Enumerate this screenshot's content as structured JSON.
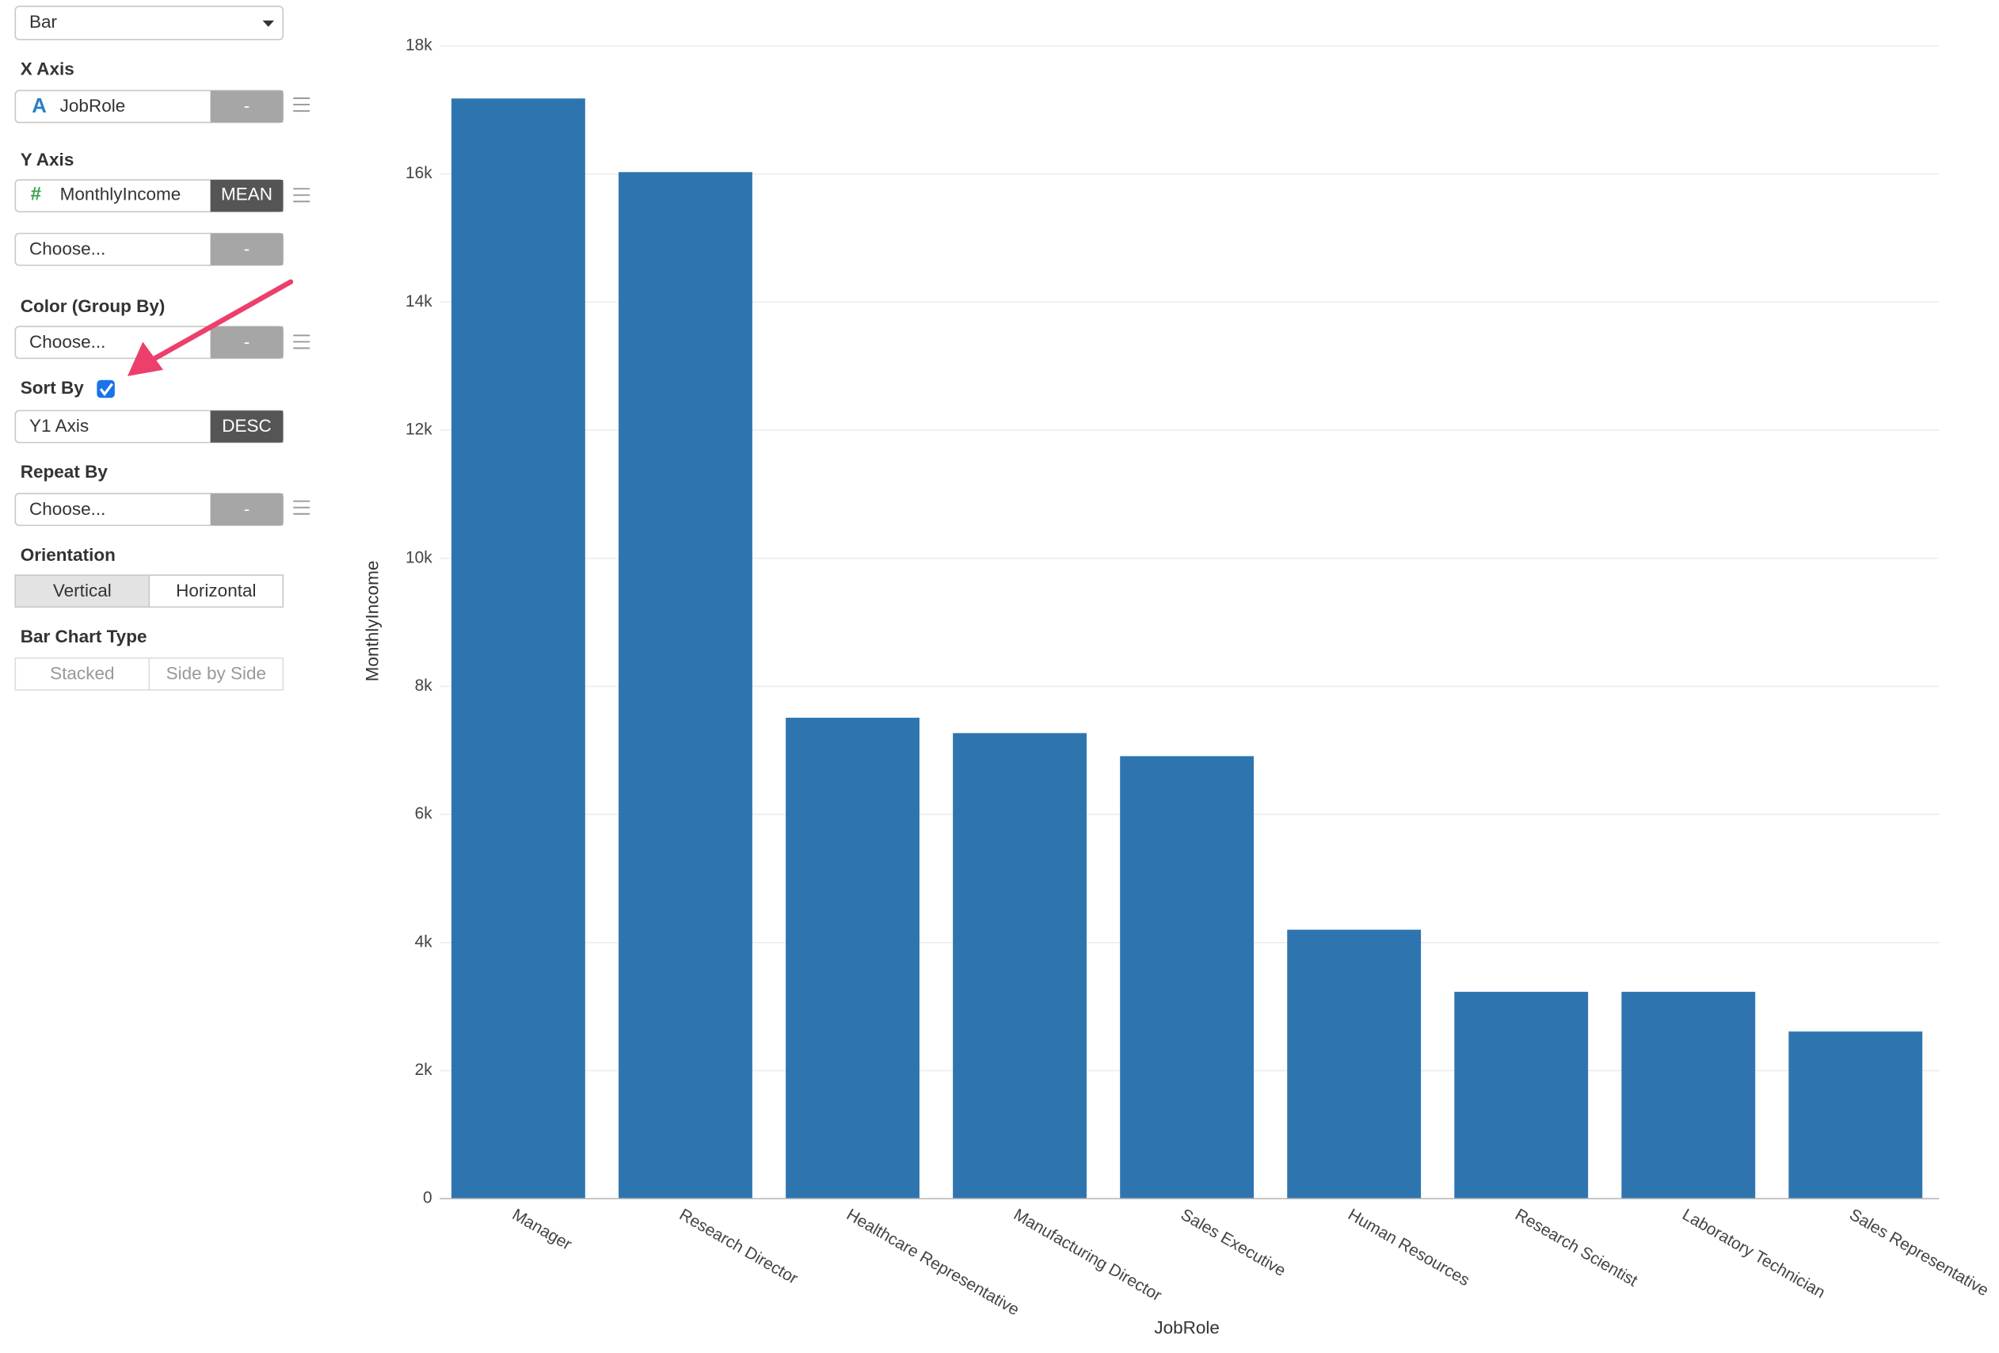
{
  "sidebar": {
    "chart_type": "Bar",
    "x_axis": {
      "label": "X Axis",
      "icon": "A",
      "field": "JobRole",
      "agg": "-"
    },
    "y_axis": {
      "label": "Y Axis",
      "icon": "#",
      "field": "MonthlyIncome",
      "agg": "MEAN"
    },
    "y_axis_extra": {
      "field": "Choose...",
      "agg": "-"
    },
    "color": {
      "label": "Color (Group By)",
      "field": "Choose...",
      "agg": "-"
    },
    "sort": {
      "label": "Sort By",
      "field": "Y1 Axis",
      "order": "DESC"
    },
    "repeat": {
      "label": "Repeat By",
      "field": "Choose...",
      "agg": "-"
    },
    "orientation": {
      "label": "Orientation",
      "options": [
        "Vertical",
        "Horizontal"
      ]
    },
    "bar_type": {
      "label": "Bar Chart Type",
      "options": [
        "Stacked",
        "Side by Side"
      ]
    }
  },
  "chart_data": {
    "type": "bar",
    "x_label": "JobRole",
    "y_label": "MonthlyIncome",
    "categories": [
      "Manager",
      "Research Director",
      "Healthcare Representative",
      "Manufacturing Director",
      "Sales Executive",
      "Human Resources",
      "Research Scientist",
      "Laboratory Technician",
      "Sales Representative"
    ],
    "values": [
      17180,
      16030,
      7510,
      7270,
      6910,
      4200,
      3230,
      3230,
      2610
    ],
    "color": "#2e75b0",
    "ylim": [
      0,
      18000
    ],
    "yticks": [
      0,
      {
        "value": 2000,
        "label": "2k"
      },
      {
        "value": 4000,
        "label": "4k"
      },
      {
        "value": 6000,
        "label": "6k"
      },
      {
        "value": 8000,
        "label": "8k"
      },
      {
        "value": 10000,
        "label": "10k"
      },
      {
        "value": 12000,
        "label": "12k"
      },
      {
        "value": 14000,
        "label": "14k"
      },
      {
        "value": 16000,
        "label": "16k"
      },
      {
        "value": 18000,
        "label": "18k"
      }
    ],
    "grid": true
  }
}
